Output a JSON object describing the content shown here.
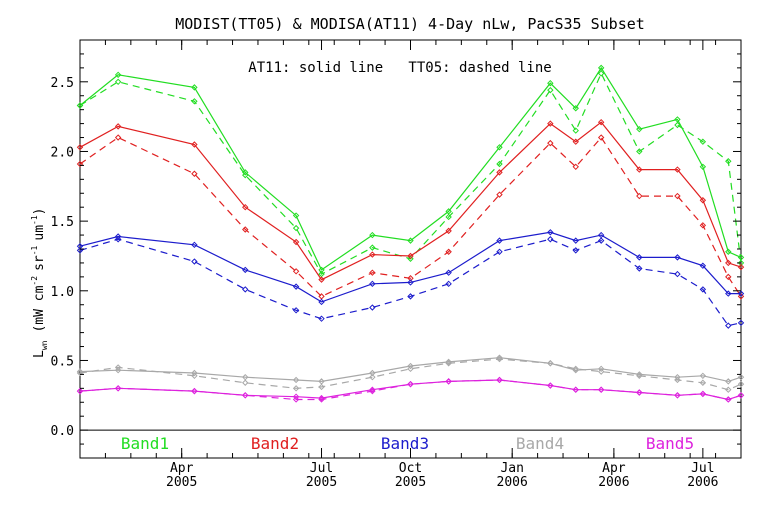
{
  "chart_data": {
    "type": "line",
    "title": "MODIST(TT05) & MODISA(AT11) 4-Day nLw, PacS35 Subset",
    "annotation": "AT11: solid line   TT05: dashed line",
    "ylabel_main": "L",
    "ylabel_sub": "wn",
    "ylabel_units_a": "(mW cm",
    "ylabel_units_b": "sr",
    "ylabel_units_c": "um",
    "ylabel_units_d": ")",
    "ylabel_exp": "-2",
    "ylabel_exp2": "-1",
    "ylabel_exp3": "-1",
    "ylim": [
      -0.2,
      2.8
    ],
    "xlim": [
      0,
      26
    ],
    "y_ticks": [
      "0.0",
      "0.5",
      "1.0",
      "1.5",
      "2.0",
      "2.5"
    ],
    "y_tick_values": [
      0.0,
      0.5,
      1.0,
      1.5,
      2.0,
      2.5
    ],
    "x_tick_positions": [
      4,
      9.5,
      13,
      17,
      21,
      24.5
    ],
    "x_ticks": [
      {
        "month": "Apr",
        "year": "2005"
      },
      {
        "month": "Jul",
        "year": "2005"
      },
      {
        "month": "Oct",
        "year": "2005"
      },
      {
        "month": "Jan",
        "year": "2006"
      },
      {
        "month": "Apr",
        "year": "2006"
      },
      {
        "month": "Jul",
        "year": "2006"
      }
    ],
    "x": [
      0,
      1.5,
      4.5,
      6.5,
      8.5,
      9.5,
      11.5,
      13,
      14.5,
      16.5,
      18.5,
      19.5,
      20.5,
      22,
      23.5,
      24.5,
      25.5,
      26
    ],
    "series": [
      {
        "name": "Band1",
        "color": "#22dd22",
        "at11": [
          2.33,
          2.55,
          2.46,
          1.85,
          1.54,
          1.15,
          1.4,
          1.36,
          1.57,
          2.03,
          2.49,
          2.31,
          2.6,
          2.16,
          2.23,
          1.89,
          1.28,
          1.24
        ],
        "tt05": [
          2.33,
          2.5,
          2.36,
          1.83,
          1.45,
          1.12,
          1.31,
          1.23,
          1.53,
          1.91,
          2.44,
          2.15,
          2.56,
          2.0,
          2.19,
          2.07,
          1.93,
          1.2
        ]
      },
      {
        "name": "Band2",
        "color": "#e02020",
        "at11": [
          2.03,
          2.18,
          2.05,
          1.6,
          1.35,
          1.08,
          1.26,
          1.25,
          1.43,
          1.85,
          2.2,
          2.07,
          2.21,
          1.87,
          1.87,
          1.65,
          1.2,
          1.17
        ],
        "tt05": [
          1.91,
          2.1,
          1.84,
          1.44,
          1.14,
          0.96,
          1.13,
          1.09,
          1.28,
          1.69,
          2.06,
          1.89,
          2.1,
          1.68,
          1.68,
          1.47,
          1.1,
          0.96
        ]
      },
      {
        "name": "Band3",
        "color": "#1c1ccc",
        "at11": [
          1.32,
          1.39,
          1.33,
          1.15,
          1.03,
          0.92,
          1.05,
          1.06,
          1.13,
          1.36,
          1.42,
          1.36,
          1.4,
          1.24,
          1.24,
          1.18,
          0.98,
          0.98
        ],
        "tt05": [
          1.29,
          1.37,
          1.21,
          1.01,
          0.86,
          0.8,
          0.88,
          0.96,
          1.05,
          1.28,
          1.37,
          1.29,
          1.36,
          1.16,
          1.12,
          1.01,
          0.75,
          0.77
        ]
      },
      {
        "name": "Band4",
        "color": "#a8a8a8",
        "at11": [
          0.42,
          0.43,
          0.41,
          0.38,
          0.36,
          0.35,
          0.41,
          0.46,
          0.49,
          0.52,
          0.48,
          0.43,
          0.44,
          0.4,
          0.38,
          0.39,
          0.35,
          0.38
        ],
        "tt05": [
          0.41,
          0.45,
          0.39,
          0.34,
          0.3,
          0.31,
          0.38,
          0.44,
          0.48,
          0.51,
          0.48,
          0.44,
          0.42,
          0.39,
          0.36,
          0.34,
          0.29,
          0.33
        ]
      },
      {
        "name": "Band5",
        "color": "#dd22dd",
        "at11": [
          0.28,
          0.3,
          0.28,
          0.25,
          0.24,
          0.23,
          0.29,
          0.33,
          0.35,
          0.36,
          0.32,
          0.29,
          0.29,
          0.27,
          0.25,
          0.26,
          0.22,
          0.25
        ],
        "tt05": [
          0.28,
          0.3,
          0.28,
          0.25,
          0.22,
          0.22,
          0.28,
          0.33,
          0.35,
          0.36,
          0.32,
          0.29,
          0.29,
          0.27,
          0.25,
          0.26,
          0.22,
          0.25
        ]
      }
    ]
  }
}
